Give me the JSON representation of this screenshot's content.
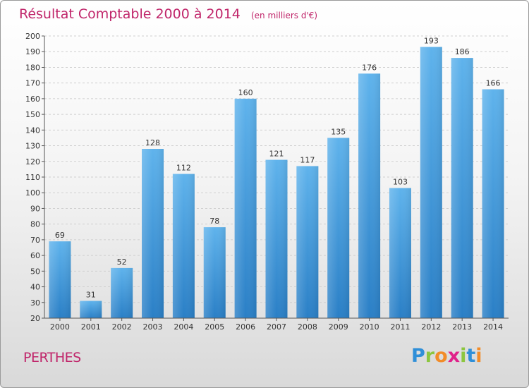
{
  "chart_data": {
    "type": "bar",
    "title": "Résultat Comptable 2000 à 2014",
    "subtitle": "(en milliers d'€)",
    "categories": [
      "2000",
      "2001",
      "2002",
      "2003",
      "2004",
      "2005",
      "2006",
      "2007",
      "2008",
      "2009",
      "2010",
      "2011",
      "2012",
      "2013",
      "2014"
    ],
    "values": [
      69,
      31,
      52,
      128,
      112,
      78,
      160,
      121,
      117,
      135,
      176,
      103,
      193,
      186,
      166
    ],
    "ylim": [
      20,
      200
    ],
    "yticks": [
      20,
      30,
      40,
      50,
      60,
      70,
      80,
      90,
      100,
      110,
      120,
      130,
      140,
      150,
      160,
      170,
      180,
      190,
      200
    ],
    "grid": true,
    "bar_color": "#3f9be0"
  },
  "footer": {
    "place": "PERTHES",
    "logo_letters": [
      {
        "ch": "P",
        "color": "#2f8fd8"
      },
      {
        "ch": "r",
        "color": "#8cc63f"
      },
      {
        "ch": "o",
        "color": "#f28c28"
      },
      {
        "ch": "x",
        "color": "#e0218a"
      },
      {
        "ch": "i",
        "color": "#8cc63f"
      },
      {
        "ch": "t",
        "color": "#2f8fd8"
      },
      {
        "ch": "i",
        "color": "#f28c28"
      }
    ]
  }
}
